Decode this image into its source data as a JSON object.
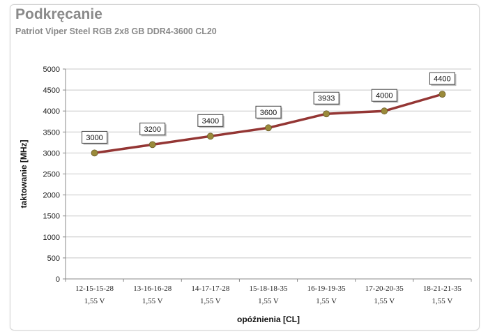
{
  "header": {
    "title": "Podkręcanie",
    "subtitle": "Patriot Viper Steel RGB 2x8 GB DDR4-3600 CL20"
  },
  "chart_data": {
    "type": "line",
    "xlabel": "opóźnienia [CL]",
    "ylabel": "taktowanie [MHz]",
    "ylim": [
      0,
      5000
    ],
    "ytick_step": 500,
    "grid": true,
    "categories": [
      [
        "12-15-15-28",
        "1,55 V"
      ],
      [
        "13-16-16-28",
        "1,55 V"
      ],
      [
        "14-17-17-28",
        "1,55 V"
      ],
      [
        "15-18-18-35",
        "1,55 V"
      ],
      [
        "16-19-19-35",
        "1,55 V"
      ],
      [
        "17-20-20-35",
        "1,55 V"
      ],
      [
        "18-21-21-35",
        "1,55 V"
      ]
    ],
    "series": [
      {
        "values": [
          3000,
          3200,
          3400,
          3600,
          3933,
          4000,
          4400
        ],
        "color": "#943634",
        "marker_color": "#9a8a3a"
      }
    ]
  }
}
